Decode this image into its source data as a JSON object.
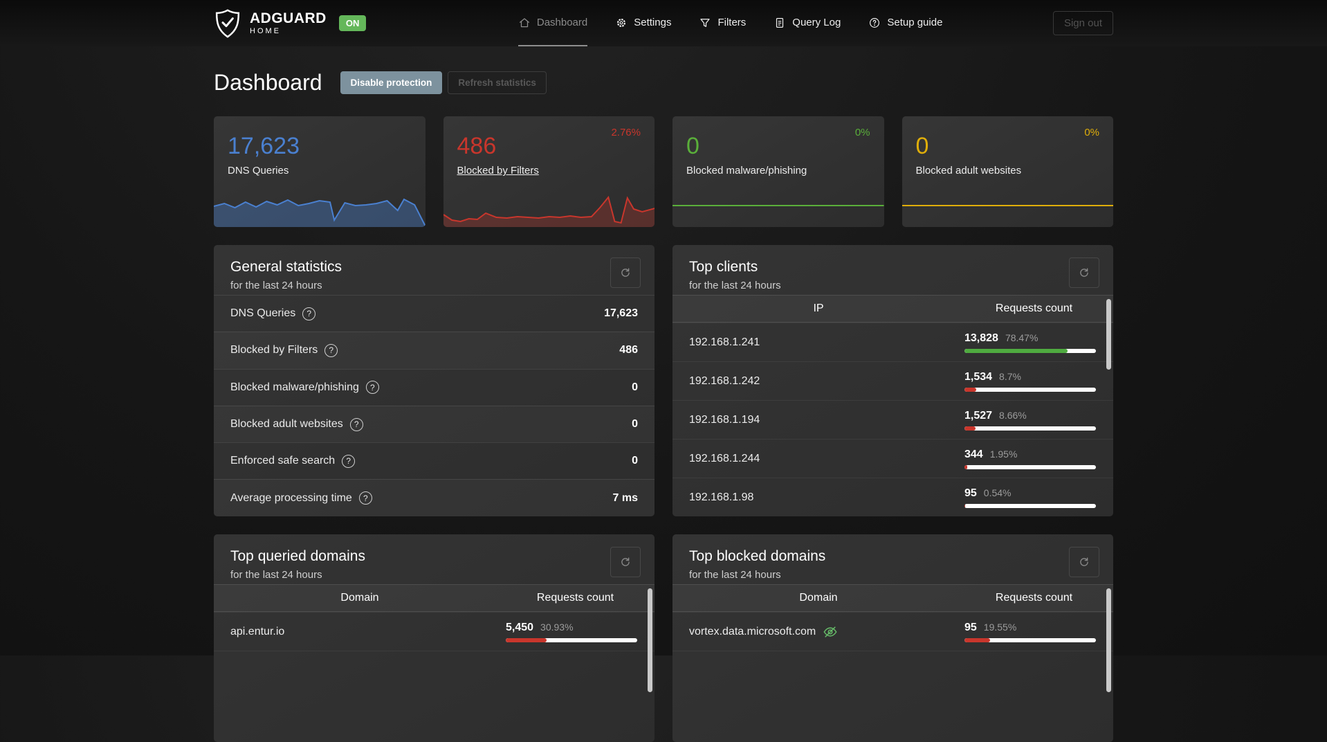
{
  "navbar": {
    "brand": {
      "name": "ADGUARD",
      "sub": "HOME",
      "badge": "ON"
    },
    "items": [
      {
        "label": "Dashboard"
      },
      {
        "label": "Settings"
      },
      {
        "label": "Filters"
      },
      {
        "label": "Query Log"
      },
      {
        "label": "Setup guide"
      }
    ],
    "signout": "Sign out"
  },
  "header": {
    "title": "Dashboard",
    "disable_btn": "Disable protection",
    "refresh_btn": "Refresh statistics"
  },
  "cards": [
    {
      "value": "17,623",
      "label": "DNS Queries",
      "percent": "",
      "color": "#4a80d0",
      "fill": "rgba(74,128,208,0.38)",
      "spark": [
        [
          0,
          18
        ],
        [
          5,
          14
        ],
        [
          10,
          20
        ],
        [
          15,
          12
        ],
        [
          20,
          19
        ],
        [
          25,
          11
        ],
        [
          30,
          16
        ],
        [
          35,
          9
        ],
        [
          40,
          17
        ],
        [
          45,
          14
        ],
        [
          50,
          10
        ],
        [
          55,
          12
        ],
        [
          57,
          38
        ],
        [
          62,
          13
        ],
        [
          67,
          17
        ],
        [
          72,
          16
        ],
        [
          77,
          14
        ],
        [
          82,
          10
        ],
        [
          87,
          24
        ],
        [
          90,
          8
        ],
        [
          95,
          16
        ],
        [
          100,
          46
        ]
      ]
    },
    {
      "value": "486",
      "label": "Blocked by Filters",
      "percent": "2.76%",
      "color": "#c9362c",
      "fill": "rgba(201,54,44,0.28)",
      "spark": [
        [
          0,
          30
        ],
        [
          4,
          38
        ],
        [
          8,
          40
        ],
        [
          12,
          36
        ],
        [
          16,
          37
        ],
        [
          20,
          28
        ],
        [
          25,
          34
        ],
        [
          30,
          35
        ],
        [
          35,
          33
        ],
        [
          40,
          34
        ],
        [
          45,
          35
        ],
        [
          50,
          33
        ],
        [
          55,
          34
        ],
        [
          60,
          32
        ],
        [
          65,
          34
        ],
        [
          70,
          33
        ],
        [
          74,
          20
        ],
        [
          78,
          5
        ],
        [
          81,
          40
        ],
        [
          84,
          42
        ],
        [
          87,
          6
        ],
        [
          90,
          22
        ],
        [
          94,
          26
        ],
        [
          100,
          21
        ]
      ]
    },
    {
      "value": "0",
      "label": "Blocked malware/phishing",
      "percent": "0%",
      "color": "#5aaf3a",
      "fill": "none",
      "spark": [
        [
          0,
          17
        ],
        [
          100,
          17
        ]
      ]
    },
    {
      "value": "0",
      "label": "Blocked adult websites",
      "percent": "0%",
      "color": "#dfae0a",
      "fill": "none",
      "spark": [
        [
          0,
          17
        ],
        [
          100,
          17
        ]
      ]
    }
  ],
  "general_stats": {
    "title": "General statistics",
    "subtitle": "for the last 24 hours",
    "rows": [
      {
        "label": "DNS Queries",
        "value": "17,623"
      },
      {
        "label": "Blocked by Filters",
        "value": "486"
      },
      {
        "label": "Blocked malware/phishing",
        "value": "0"
      },
      {
        "label": "Blocked adult websites",
        "value": "0"
      },
      {
        "label": "Enforced safe search",
        "value": "0"
      },
      {
        "label": "Average processing time",
        "value": "7 ms"
      }
    ]
  },
  "top_clients": {
    "title": "Top clients",
    "subtitle": "for the last 24 hours",
    "col_ip": "IP",
    "col_count": "Requests count",
    "rows": [
      {
        "ip": "192.168.1.241",
        "count": "13,828",
        "percent": "78.47%",
        "bar_percent": 78.47,
        "bar_color": "#4fab40"
      },
      {
        "ip": "192.168.1.242",
        "count": "1,534",
        "percent": "8.7%",
        "bar_percent": 8.7,
        "bar_color": "#c9362c"
      },
      {
        "ip": "192.168.1.194",
        "count": "1,527",
        "percent": "8.66%",
        "bar_percent": 8.66,
        "bar_color": "#c9362c"
      },
      {
        "ip": "192.168.1.244",
        "count": "344",
        "percent": "1.95%",
        "bar_percent": 1.95,
        "bar_color": "#c9362c"
      },
      {
        "ip": "192.168.1.98",
        "count": "95",
        "percent": "0.54%",
        "bar_percent": 0.54,
        "bar_color": "#c9362c"
      }
    ]
  },
  "top_queried": {
    "title": "Top queried domains",
    "subtitle": "for the last 24 hours",
    "col_domain": "Domain",
    "col_count": "Requests count",
    "rows": [
      {
        "domain": "api.entur.io",
        "count": "5,450",
        "percent": "30.93%",
        "bar_percent": 30.93,
        "bar_color": "#c9362c"
      }
    ]
  },
  "top_blocked": {
    "title": "Top blocked domains",
    "subtitle": "for the last 24 hours",
    "col_domain": "Domain",
    "col_count": "Requests count",
    "rows": [
      {
        "domain": "vortex.data.microsoft.com",
        "count": "95",
        "percent": "19.55%",
        "bar_percent": 19.55,
        "bar_color": "#c9362c"
      }
    ]
  }
}
